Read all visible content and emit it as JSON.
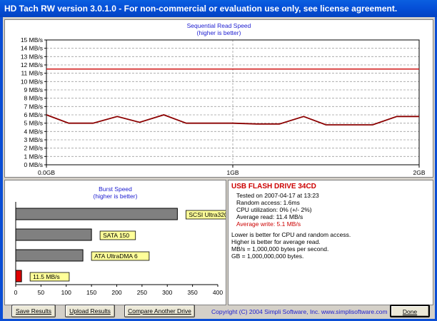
{
  "window": {
    "title": "HD Tach RW version 3.0.1.0  - For non-commercial or evaluation use only, see license agreement."
  },
  "read_chart": {
    "title": "Sequential Read Speed",
    "subtitle": "(higher is better)",
    "y_ticks": [
      "15 MB/s",
      "14 MB/s",
      "13 MB/s",
      "12 MB/s",
      "11 MB/s",
      "10 MB/s",
      "9 MB/s",
      "8 MB/s",
      "7 MB/s",
      "6 MB/s",
      "5 MB/s",
      "4 MB/s",
      "3 MB/s",
      "2 MB/s",
      "1 MB/s",
      "0 MB/s"
    ],
    "x_ticks": [
      "0.0GB",
      "1GB",
      "2GB"
    ]
  },
  "burst_chart": {
    "title": "Burst Speed",
    "subtitle": "(higher is better)",
    "x_ticks": [
      "0",
      "50",
      "100",
      "150",
      "200",
      "250",
      "300",
      "350",
      "400"
    ],
    "bars": [
      {
        "label": "SCSI Ultra320"
      },
      {
        "label": "SATA 150"
      },
      {
        "label": "ATA UltraDMA 6"
      },
      {
        "label": "11.5 MB/s"
      }
    ]
  },
  "chart_data": [
    {
      "type": "line",
      "title": "Sequential Read Speed",
      "subtitle": "(higher is better)",
      "xlabel": "",
      "ylabel": "",
      "xlim": [
        0,
        2
      ],
      "ylim": [
        0,
        15
      ],
      "grid": true,
      "series": [
        {
          "color": "#cc0000",
          "x": [
            0,
            2
          ],
          "y": [
            11.5,
            11.5
          ]
        },
        {
          "color": "#8b0000",
          "x": [
            0,
            0.12,
            0.25,
            0.38,
            0.5,
            0.63,
            0.75,
            0.88,
            1.0,
            1.13,
            1.25,
            1.38,
            1.5,
            1.63,
            1.75,
            1.88,
            2.0
          ],
          "y": [
            6.0,
            5.0,
            5.0,
            5.8,
            5.1,
            6.0,
            5.0,
            5.0,
            5.0,
            4.9,
            4.9,
            5.8,
            4.8,
            4.8,
            4.8,
            5.8,
            5.8
          ]
        }
      ]
    },
    {
      "type": "bar",
      "orientation": "horizontal",
      "title": "Burst Speed",
      "subtitle": "(higher is better)",
      "xlim": [
        0,
        400
      ],
      "categories": [
        "SCSI Ultra320",
        "SATA 150",
        "ATA UltraDMA 6",
        "11.5 MB/s"
      ],
      "values": [
        320,
        150,
        133,
        11.5
      ],
      "colors": [
        "#808080",
        "#808080",
        "#808080",
        "#e00000"
      ]
    }
  ],
  "info": {
    "drive": "USB FLASH DRIVE 34CD",
    "tested": "Tested on 2007-04-17 at 13:23",
    "random": "Random access: 1.6ms",
    "cpu": "CPU utilization: 0% (+/- 2%)",
    "avg_read": "Average read: 11.4 MB/s",
    "avg_write": "Average write: 5.1 MB/s",
    "note1": "Lower is better for CPU and random access.",
    "note2": "Higher is better for average read.",
    "note3": "MB/s = 1,000,000 bytes per second.",
    "note4": "GB = 1,000,000,000 bytes."
  },
  "buttons": {
    "save": "Save Results",
    "upload": "Upload Results",
    "compare": "Compare Another Drive",
    "done": "Done"
  },
  "footer": {
    "copyright": "Copyright (C) 2004 Simpli Software, Inc. www.simplisoftware.com"
  },
  "colors": {
    "title_bar": "#0550d8",
    "chart_title": "#1c1cd0",
    "drive_name": "#cc0000",
    "avg_write": "#cc0000",
    "read_line": "#8b0000",
    "burst_bar": "#808080",
    "label_box": "#ffff99"
  }
}
